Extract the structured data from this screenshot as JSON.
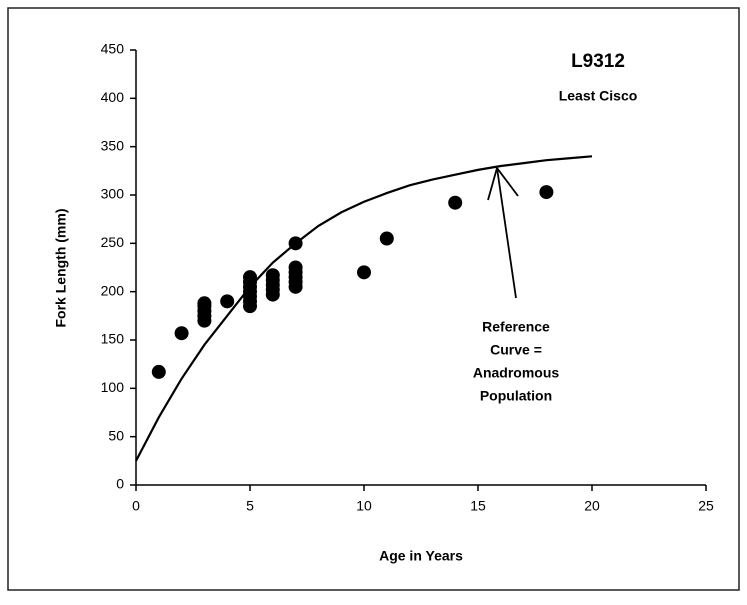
{
  "chart_data": {
    "type": "scatter",
    "title": "L9312",
    "subtitle": "Least Cisco",
    "xlabel": "Age in Years",
    "ylabel": "Fork Length (mm)",
    "annotation": [
      "Reference",
      "Curve =",
      "Anadromous",
      "Population"
    ],
    "xlim": [
      0,
      25
    ],
    "xticks": [
      0,
      5,
      10,
      15,
      20,
      25
    ],
    "ylim": [
      0,
      450
    ],
    "yticks": [
      0,
      50,
      100,
      150,
      200,
      250,
      300,
      350,
      400,
      450
    ],
    "grid": false,
    "color": "#000000",
    "points": {
      "x": [
        1,
        2,
        3,
        3,
        3,
        3,
        3,
        4,
        5,
        5,
        5,
        5,
        5,
        5,
        5,
        6,
        6,
        6,
        6,
        6,
        7,
        7,
        7,
        7,
        7,
        7,
        10,
        11,
        14,
        18
      ],
      "values": [
        117,
        157,
        170,
        175,
        180,
        185,
        188,
        190,
        185,
        190,
        195,
        200,
        205,
        210,
        215,
        197,
        202,
        207,
        212,
        217,
        205,
        210,
        215,
        220,
        225,
        250,
        220,
        255,
        292,
        303
      ]
    },
    "curve": {
      "x": [
        0,
        1,
        2,
        3,
        4,
        5,
        6,
        7,
        8,
        9,
        10,
        11,
        12,
        13,
        14,
        15,
        16,
        17,
        18,
        19,
        20
      ],
      "values": [
        25,
        70,
        110,
        145,
        175,
        205,
        230,
        250,
        268,
        282,
        293,
        302,
        310,
        316,
        321,
        326,
        330,
        333,
        336,
        338,
        340
      ]
    }
  }
}
